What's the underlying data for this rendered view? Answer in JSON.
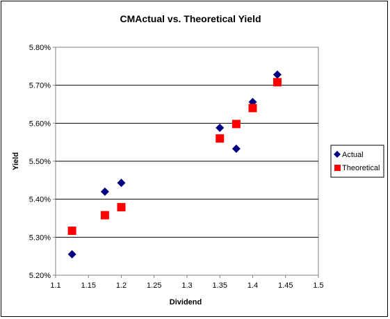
{
  "chart_data": {
    "type": "scatter",
    "title": "CMActual vs. Theoretical Yield",
    "xlabel": "Dividend",
    "ylabel": "Yield",
    "xlim": [
      1.1,
      1.5
    ],
    "ylim": [
      0.052,
      0.058
    ],
    "x_ticks": [
      "1.1",
      "1.15",
      "1.2",
      "1.25",
      "1.3",
      "1.35",
      "1.4",
      "1.45",
      "1.5"
    ],
    "x_tick_values": [
      1.1,
      1.15,
      1.2,
      1.25,
      1.3,
      1.35,
      1.4,
      1.45,
      1.5
    ],
    "y_ticks": [
      "5.20%",
      "5.30%",
      "5.40%",
      "5.50%",
      "5.60%",
      "5.70%",
      "5.80%"
    ],
    "y_tick_values": [
      0.052,
      0.053,
      0.054,
      0.055,
      0.056,
      0.057,
      0.058
    ],
    "grid": "horizontal",
    "legend_position": "right",
    "series": [
      {
        "name": "Actual",
        "marker": "diamond",
        "color": "#000080",
        "points": [
          {
            "x": 1.125,
            "y": 0.05255
          },
          {
            "x": 1.175,
            "y": 0.0542
          },
          {
            "x": 1.2,
            "y": 0.05443
          },
          {
            "x": 1.35,
            "y": 0.05588
          },
          {
            "x": 1.375,
            "y": 0.05533
          },
          {
            "x": 1.4,
            "y": 0.05656
          },
          {
            "x": 1.4375,
            "y": 0.05728
          }
        ]
      },
      {
        "name": "Theoretical",
        "marker": "square",
        "color": "#ff0000",
        "points": [
          {
            "x": 1.125,
            "y": 0.05317
          },
          {
            "x": 1.175,
            "y": 0.05358
          },
          {
            "x": 1.2,
            "y": 0.05379
          },
          {
            "x": 1.35,
            "y": 0.0556
          },
          {
            "x": 1.375,
            "y": 0.05598
          },
          {
            "x": 1.4,
            "y": 0.0564
          },
          {
            "x": 1.4375,
            "y": 0.05708
          }
        ]
      }
    ]
  }
}
